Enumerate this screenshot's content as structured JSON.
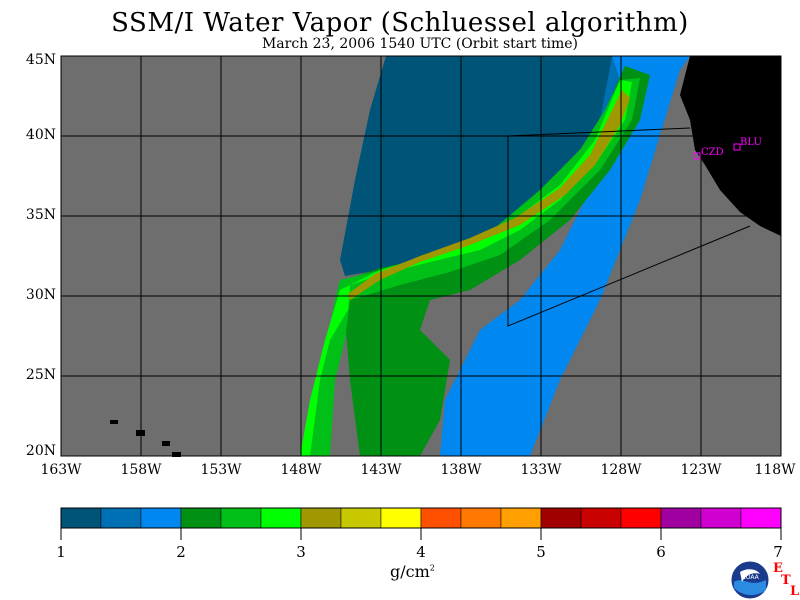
{
  "title": "SSM/I Water Vapor (Schluessel algorithm)",
  "subtitle": "March 23, 2006  1540 UTC  (Orbit start time)",
  "map": {
    "lat_labels": [
      "45N",
      "40N",
      "35N",
      "30N",
      "25N",
      "20N"
    ],
    "lon_labels": [
      "163W",
      "158W",
      "153W",
      "148W",
      "143W",
      "138W",
      "133W",
      "128W",
      "123W",
      "118W"
    ],
    "stations": [
      {
        "name": "CZD"
      },
      {
        "name": "BLU"
      }
    ],
    "colors": {
      "no_data": "#6e6e6e",
      "land": "#000000",
      "grid": "#000000",
      "station": "#ff00ff"
    }
  },
  "colorbar": {
    "ticks": [
      "1",
      "2",
      "3",
      "4",
      "5",
      "6",
      "7"
    ],
    "units": "g/cm",
    "units_sup": "2",
    "colors": [
      "#005478",
      "#0070b4",
      "#0088f0",
      "#009014",
      "#00c018",
      "#00ff00",
      "#a09800",
      "#c8c800",
      "#ffff00",
      "#ff5000",
      "#ff7800",
      "#ffa000",
      "#a00000",
      "#c80000",
      "#ff0000",
      "#a000a0",
      "#d000d0",
      "#ff00ff"
    ]
  },
  "logo": {
    "name": "NOAA",
    "credit_letters": [
      "E",
      "T",
      "L"
    ]
  }
}
